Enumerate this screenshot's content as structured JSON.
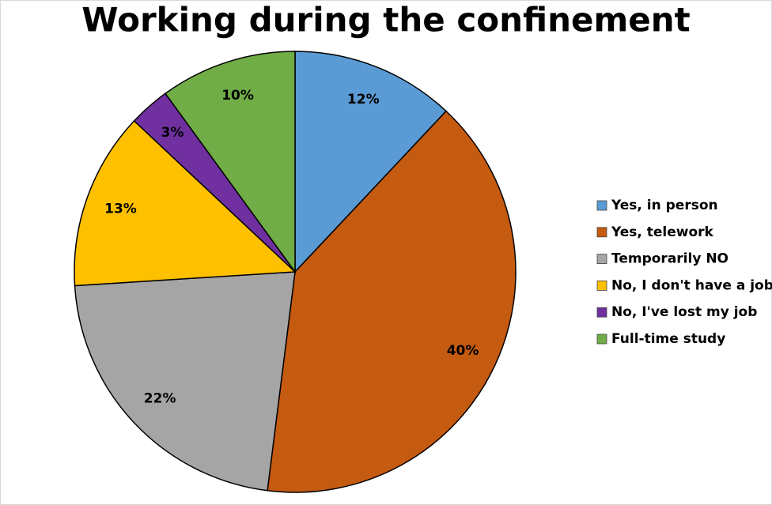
{
  "chart_data": {
    "type": "pie",
    "title": "Working during the confinement",
    "categories": [
      "Yes, in person",
      "Yes, telework",
      "Temporarily NO",
      "No, I don't have a job",
      "No, I've lost my job",
      "Full-time study"
    ],
    "values": [
      12,
      40,
      22,
      13,
      3,
      10
    ],
    "value_labels": [
      "12%",
      "40%",
      "22%",
      "13%",
      "3%",
      "10%"
    ],
    "colors": [
      "#5b9bd5",
      "#c55a11",
      "#a5a5a5",
      "#ffc000",
      "#7030a0",
      "#70ad47"
    ],
    "legend": "right"
  }
}
